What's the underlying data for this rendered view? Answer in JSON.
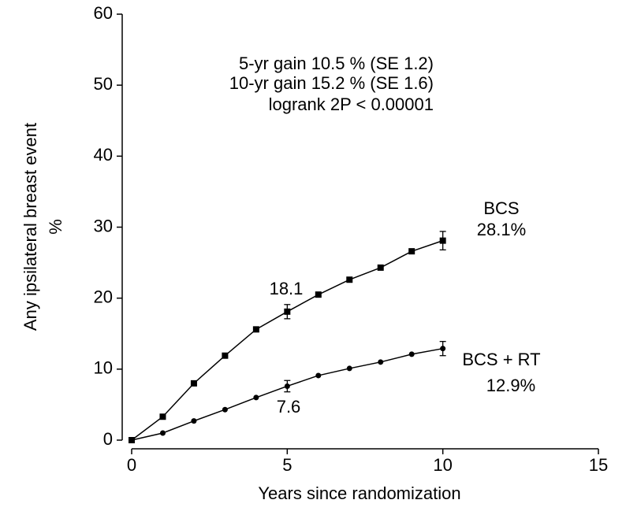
{
  "chart_data": {
    "type": "line",
    "xlabel": "Years since randomization",
    "ylabel": [
      "Any ipsilateral breast event",
      "%"
    ],
    "x": [
      0,
      1,
      2,
      3,
      4,
      5,
      6,
      7,
      8,
      9,
      10
    ],
    "series": [
      {
        "name": "BCS",
        "color": "#000000",
        "marker": "square",
        "values": [
          0,
          3.3,
          8.0,
          11.9,
          15.6,
          18.1,
          20.5,
          22.6,
          24.3,
          26.6,
          28.1
        ],
        "errors": [
          null,
          null,
          null,
          null,
          null,
          1.0,
          null,
          null,
          null,
          null,
          1.3
        ]
      },
      {
        "name": "BCS + RT",
        "color": "#000000",
        "marker": "circle",
        "values": [
          0,
          1.0,
          2.7,
          4.3,
          6.0,
          7.6,
          9.1,
          10.1,
          11.0,
          12.1,
          12.9
        ],
        "errors": [
          null,
          null,
          null,
          null,
          null,
          0.8,
          null,
          null,
          null,
          null,
          1.0
        ]
      }
    ],
    "annotations": [
      "5-yr gain 10.5 % (SE 1.2)",
      "10-yr gain 15.2 % (SE 1.6)",
      "logrank 2P < 0.00001",
      "28.1%",
      "12.9%",
      "18.1",
      "7.6"
    ],
    "xlim": [
      0,
      15
    ],
    "xticks": [
      0,
      5,
      10,
      15
    ],
    "ylim": [
      0,
      60
    ],
    "yticks": [
      0,
      10,
      20,
      30,
      40,
      50,
      60
    ],
    "grid": false
  }
}
